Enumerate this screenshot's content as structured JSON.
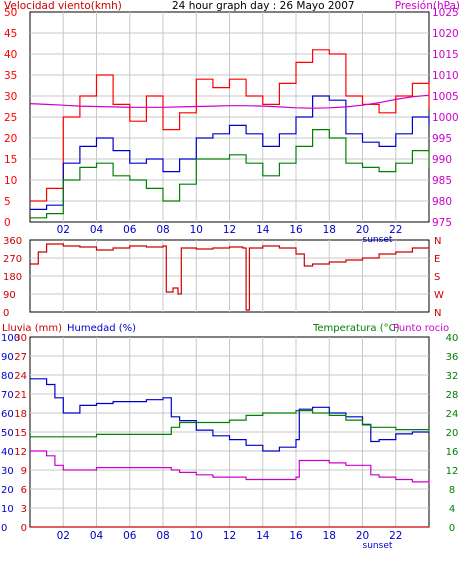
{
  "colors": {
    "background": "#ffffff",
    "frame": "#000000",
    "wind_speed": "#ff0000",
    "wind_gust_avg": "#0000cc",
    "wind_low": "#008000",
    "pressure": "#cc00cc",
    "direction": "#cc0000",
    "rain": "#cc0000",
    "humidity": "#0000cc",
    "temperature": "#008000",
    "dew_point": "#cc00cc",
    "grid": "#c8c8c8"
  },
  "chart_data": [
    {
      "type": "line",
      "title": "24 hour graph day : 26 Mayo 2007",
      "left_axis_label": "Velocidad viento(kmh)",
      "right_axis_label": "Presión(hPa)",
      "xlim": [
        0,
        24
      ],
      "x_ticks": [
        "02",
        "04",
        "06",
        "08",
        "10",
        "12",
        "14",
        "16",
        "18",
        "20",
        "22"
      ],
      "x_tick_values": [
        2,
        4,
        6,
        8,
        10,
        12,
        14,
        16,
        18,
        20,
        22
      ],
      "sunset_label": "sunset",
      "sunset_hour": 20.9,
      "ylim": [
        0,
        50
      ],
      "y_ticks": [
        0,
        5,
        10,
        15,
        20,
        25,
        30,
        35,
        40,
        45,
        50
      ],
      "y2lim": [
        975,
        1025
      ],
      "y2_ticks": [
        975,
        980,
        985,
        990,
        995,
        1000,
        1005,
        1010,
        1015,
        1020,
        1025
      ],
      "grid": true,
      "x": [
        0,
        1,
        2,
        3,
        4,
        5,
        6,
        7,
        8,
        9,
        10,
        11,
        12,
        13,
        14,
        15,
        16,
        17,
        18,
        19,
        20,
        21,
        22,
        23,
        24
      ],
      "series": [
        {
          "axis": "left",
          "color_key": "wind_speed",
          "values": [
            5,
            8,
            25,
            30,
            35,
            28,
            24,
            30,
            22,
            26,
            34,
            32,
            34,
            30,
            28,
            33,
            38,
            41,
            40,
            30,
            28,
            26,
            30,
            33,
            27
          ]
        },
        {
          "axis": "left",
          "color_key": "wind_gust_avg",
          "values": [
            3,
            4,
            14,
            18,
            20,
            17,
            14,
            15,
            12,
            15,
            20,
            21,
            23,
            21,
            18,
            21,
            25,
            30,
            29,
            21,
            19,
            18,
            21,
            25,
            23
          ]
        },
        {
          "axis": "left",
          "color_key": "wind_low",
          "values": [
            1,
            2,
            10,
            13,
            14,
            11,
            10,
            8,
            5,
            9,
            15,
            15,
            16,
            14,
            11,
            14,
            18,
            22,
            20,
            14,
            13,
            12,
            14,
            17,
            13
          ]
        },
        {
          "axis": "right",
          "color_key": "pressure",
          "values": [
            1003.2,
            1003,
            1002.8,
            1002.6,
            1002.5,
            1002.4,
            1002.3,
            1002.3,
            1002.3,
            1002.4,
            1002.5,
            1002.6,
            1002.7,
            1002.7,
            1002.6,
            1002.4,
            1002.2,
            1002.1,
            1002.2,
            1002.4,
            1002.8,
            1003.4,
            1004.2,
            1004.8,
            1005.2
          ]
        }
      ]
    },
    {
      "type": "line",
      "xlim": [
        0,
        24
      ],
      "ylim": [
        0,
        360
      ],
      "y_ticks": [
        0,
        90,
        180,
        270,
        360
      ],
      "right_tick_labels": [
        "N",
        "W",
        "S",
        "E",
        "N"
      ],
      "grid": true,
      "x": [
        0,
        0.5,
        1,
        2,
        3,
        4,
        5,
        6,
        7,
        8,
        8.2,
        8.6,
        8.9,
        9.1,
        10,
        11,
        12,
        12.8,
        13,
        13.2,
        14,
        15,
        16,
        16.5,
        17,
        18,
        19,
        20,
        21,
        22,
        23,
        24
      ],
      "series": [
        {
          "color_key": "direction",
          "values": [
            240,
            300,
            340,
            330,
            325,
            310,
            320,
            330,
            325,
            330,
            100,
            120,
            90,
            320,
            315,
            320,
            325,
            320,
            10,
            320,
            330,
            320,
            290,
            230,
            240,
            250,
            260,
            270,
            290,
            300,
            320,
            310
          ]
        }
      ]
    },
    {
      "type": "line",
      "rain_axis_label": "Lluvia (mm)",
      "humidity_axis_label": "Humedad (%)",
      "temperature_axis_label": "Temperatura (°C)",
      "dew_point_axis_label": "Punto rocio",
      "xlim": [
        0,
        24
      ],
      "x_ticks": [
        "02",
        "04",
        "06",
        "08",
        "10",
        "12",
        "14",
        "16",
        "18",
        "20",
        "22"
      ],
      "sunset_label": "sunset",
      "sunset_hour": 20.9,
      "rain_ylim": [
        0,
        30
      ],
      "rain_ticks": [
        0,
        3,
        6,
        9,
        12,
        15,
        18,
        21,
        24,
        27,
        30
      ],
      "humidity_ylim": [
        0,
        100
      ],
      "humidity_ticks": [
        0,
        10,
        20,
        30,
        40,
        50,
        60,
        70,
        80,
        90,
        100
      ],
      "temperature_ylim": [
        0,
        40
      ],
      "temperature_ticks": [
        0,
        4,
        8,
        12,
        16,
        20,
        24,
        28,
        32,
        36,
        40
      ],
      "grid": true,
      "x": [
        0,
        0.5,
        1,
        1.5,
        2,
        3,
        4,
        5,
        6,
        7,
        8,
        8.5,
        9,
        10,
        11,
        12,
        13,
        14,
        15,
        16,
        16.2,
        17,
        18,
        19,
        20,
        20.5,
        21,
        22,
        23,
        24
      ],
      "series": [
        {
          "axis": "rain",
          "color_key": "rain",
          "values": [
            0,
            0,
            0,
            0,
            0,
            0,
            0,
            0,
            0,
            0,
            0,
            0,
            0,
            0,
            0,
            0,
            0,
            0,
            0,
            0,
            0,
            0,
            0,
            0,
            0,
            0,
            0,
            0,
            0,
            0
          ]
        },
        {
          "axis": "humidity",
          "color_key": "humidity",
          "values": [
            78,
            78,
            75,
            68,
            60,
            64,
            65,
            66,
            66,
            67,
            68,
            58,
            56,
            51,
            48,
            46,
            43,
            40,
            42,
            46,
            62,
            63,
            60,
            58,
            54,
            45,
            46,
            49,
            50,
            50
          ]
        },
        {
          "axis": "temperature",
          "color_key": "temperature",
          "values": [
            19,
            19,
            19,
            19,
            19,
            19,
            19.5,
            19.5,
            19.5,
            19.5,
            19.5,
            21,
            22,
            22,
            22,
            22.5,
            23.5,
            24,
            24,
            24.5,
            24.5,
            24,
            23.5,
            22.5,
            21.5,
            21,
            21,
            20.5,
            20.5,
            20
          ]
        },
        {
          "axis": "temperature",
          "color_key": "dew_point",
          "values": [
            16,
            16,
            15,
            13,
            12,
            12,
            12.5,
            12.5,
            12.5,
            12.5,
            12.5,
            12,
            11.5,
            11,
            10.5,
            10.5,
            10,
            10,
            10,
            10.5,
            14,
            14,
            13.5,
            13,
            13,
            11,
            10.5,
            10,
            9.5,
            9
          ]
        }
      ]
    }
  ]
}
